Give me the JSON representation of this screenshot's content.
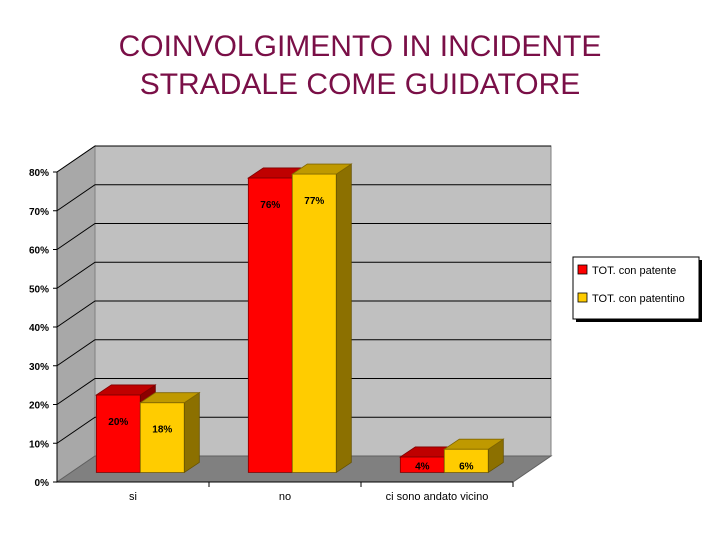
{
  "title_line1": "COINVOLGIMENTO IN INCIDENTE",
  "title_line2": "STRADALE COME GUIDATORE",
  "chart_data": {
    "type": "bar",
    "categories": [
      "si",
      "no",
      "ci sono andato vicino"
    ],
    "series": [
      {
        "name": "TOT. con patente",
        "values": [
          20,
          76,
          4
        ],
        "labels": [
          "20%",
          "76%",
          "4%"
        ],
        "color": "#ff0000"
      },
      {
        "name": "TOT. con patentino",
        "values": [
          18,
          77,
          6
        ],
        "labels": [
          "18%",
          "77%",
          "6%"
        ],
        "color": "#ffcc00"
      }
    ],
    "yticks": [
      "0%",
      "10%",
      "20%",
      "30%",
      "40%",
      "50%",
      "60%",
      "70%",
      "80%"
    ],
    "ylim": [
      0,
      80
    ],
    "grid": true,
    "legend_position": "right",
    "style": "3d-clustered-column"
  }
}
